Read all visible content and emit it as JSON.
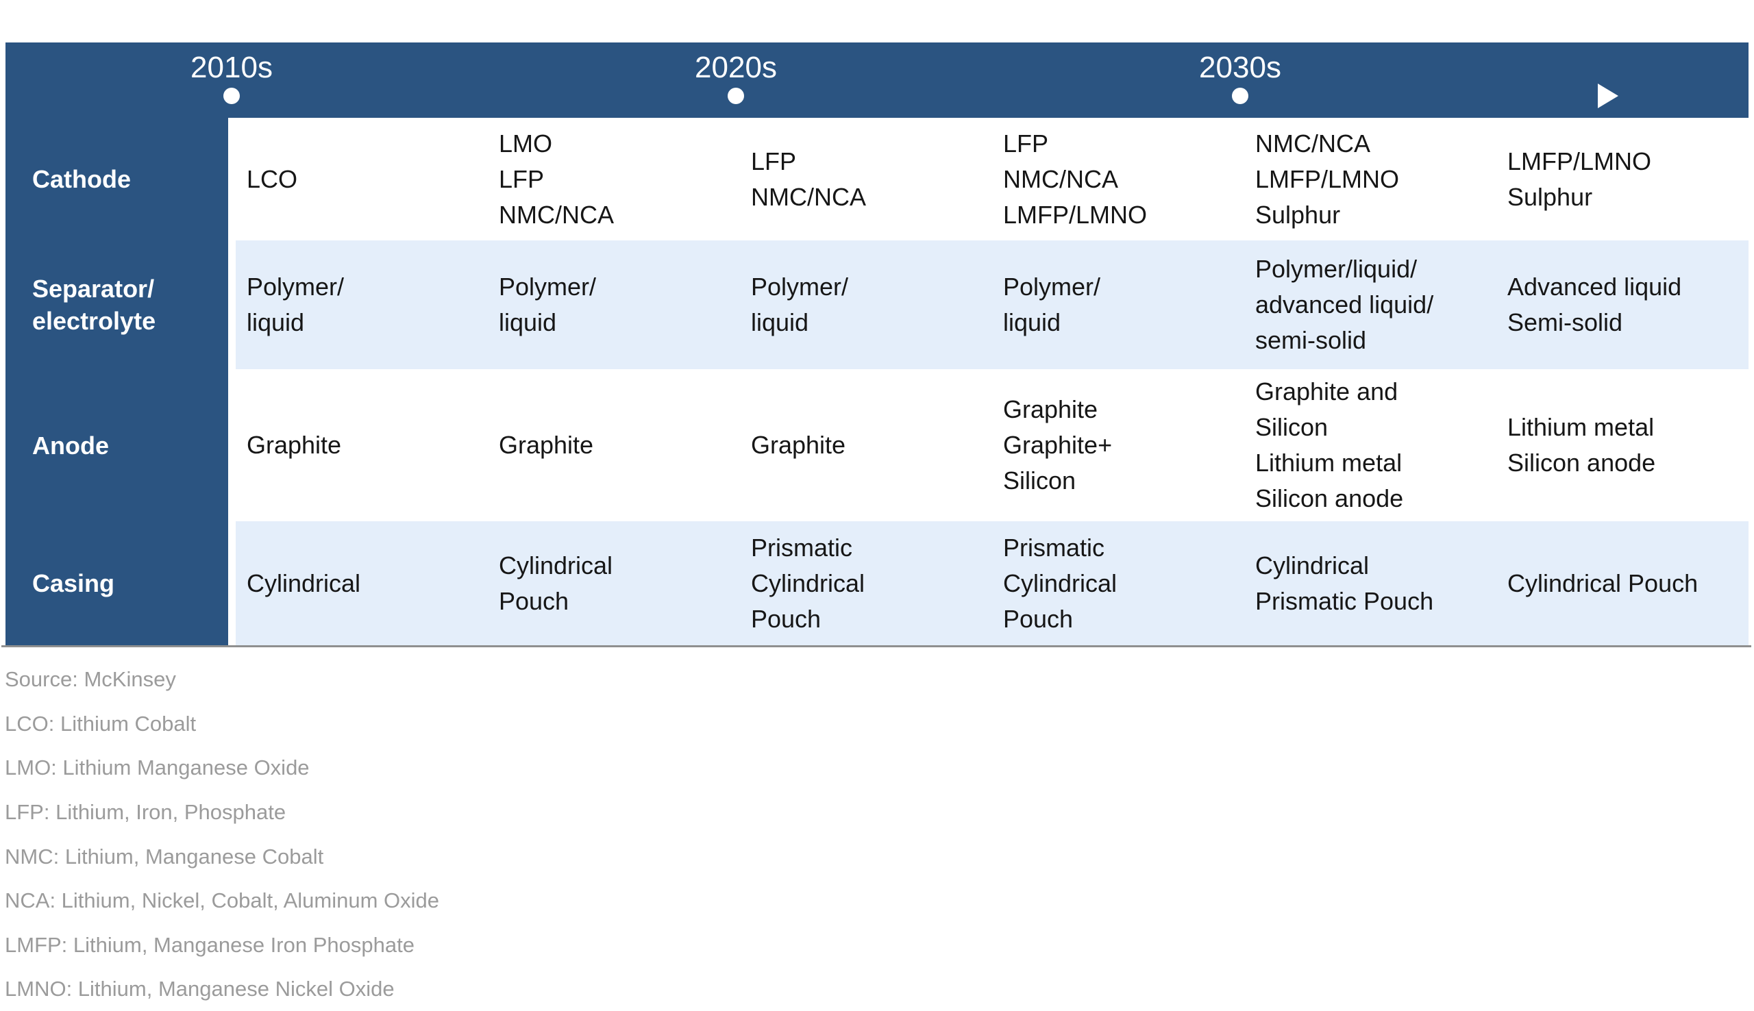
{
  "colors": {
    "header_blue": "#2b5481",
    "row_light_blue": "#e4eefa",
    "cell_text": "#161616",
    "footnote_gray": "#9b9b9b",
    "divider_gray": "#8f8f8f"
  },
  "timeline": {
    "decades": [
      {
        "label": "2010s"
      },
      {
        "label": "2020s"
      },
      {
        "label": "2030s"
      }
    ]
  },
  "table": {
    "rows": [
      {
        "label_lines": [
          "Cathode"
        ],
        "shaded": false,
        "cells": [
          [
            "LCO"
          ],
          [
            "LMO",
            "LFP",
            "NMC/NCA"
          ],
          [
            "LFP",
            "NMC/NCA"
          ],
          [
            "LFP",
            "NMC/NCA",
            "LMFP/LMNO"
          ],
          [
            "NMC/NCA",
            "LMFP/LMNO",
            "Sulphur"
          ],
          [
            "LMFP/LMNO",
            "Sulphur"
          ]
        ]
      },
      {
        "label_lines": [
          "Separator/",
          "electrolyte"
        ],
        "shaded": true,
        "cells": [
          [
            "Polymer/",
            "liquid"
          ],
          [
            "Polymer/",
            "liquid"
          ],
          [
            "Polymer/",
            "liquid"
          ],
          [
            "Polymer/",
            "liquid"
          ],
          [
            "Polymer/liquid/",
            "advanced liquid/",
            "semi-solid"
          ],
          [
            "Advanced liquid",
            "Semi-solid"
          ]
        ]
      },
      {
        "label_lines": [
          "Anode"
        ],
        "shaded": false,
        "cells": [
          [
            "Graphite"
          ],
          [
            "Graphite"
          ],
          [
            "Graphite"
          ],
          [
            "Graphite",
            "Graphite+",
            "Silicon"
          ],
          [
            "Graphite and",
            "Silicon",
            "Lithium metal",
            "Silicon anode"
          ],
          [
            "Lithium metal",
            "Silicon anode"
          ]
        ]
      },
      {
        "label_lines": [
          "Casing"
        ],
        "shaded": true,
        "cells": [
          [
            "Cylindrical"
          ],
          [
            "Cylindrical",
            "Pouch"
          ],
          [
            "Prismatic",
            "Cylindrical",
            "Pouch"
          ],
          [
            "Prismatic",
            "Cylindrical",
            "Pouch"
          ],
          [
            "Cylindrical",
            "Prismatic Pouch"
          ],
          [
            "Cylindrical Pouch"
          ]
        ]
      }
    ]
  },
  "footnotes": [
    "Source: McKinsey",
    "LCO: Lithium Cobalt",
    "LMO: Lithium Manganese Oxide",
    "LFP: Lithium, Iron, Phosphate",
    "NMC: Lithium, Manganese Cobalt",
    "NCA: Lithium, Nickel, Cobalt, Aluminum Oxide",
    "LMFP: Lithium, Manganese Iron Phosphate",
    "LMNO: Lithium, Manganese Nickel Oxide"
  ],
  "chart_data": {
    "type": "table",
    "title": "",
    "column_groups": [
      {
        "decade": "2010s",
        "column_indexes": [
          0,
          1
        ]
      },
      {
        "decade": "2020s",
        "column_indexes": [
          2,
          3
        ]
      },
      {
        "decade": "2030s",
        "column_indexes": [
          4,
          5
        ]
      }
    ],
    "rows": [
      {
        "label": "Cathode",
        "cells": [
          "LCO",
          "LMO, LFP, NMC/NCA",
          "LFP, NMC/NCA",
          "LFP, NMC/NCA, LMFP/LMNO",
          "NMC/NCA, LMFP/LMNO, Sulphur",
          "LMFP/LMNO, Sulphur"
        ]
      },
      {
        "label": "Separator/electrolyte",
        "cells": [
          "Polymer/liquid",
          "Polymer/liquid",
          "Polymer/liquid",
          "Polymer/liquid",
          "Polymer/liquid/advanced liquid/semi-solid",
          "Advanced liquid, Semi-solid"
        ]
      },
      {
        "label": "Anode",
        "cells": [
          "Graphite",
          "Graphite",
          "Graphite",
          "Graphite, Graphite+ Silicon",
          "Graphite and Silicon, Lithium metal, Silicon anode",
          "Lithium metal, Silicon anode"
        ]
      },
      {
        "label": "Casing",
        "cells": [
          "Cylindrical",
          "Cylindrical, Pouch",
          "Prismatic, Cylindrical, Pouch",
          "Prismatic, Cylindrical, Pouch",
          "Cylindrical, Prismatic Pouch",
          "Cylindrical Pouch"
        ]
      }
    ]
  }
}
